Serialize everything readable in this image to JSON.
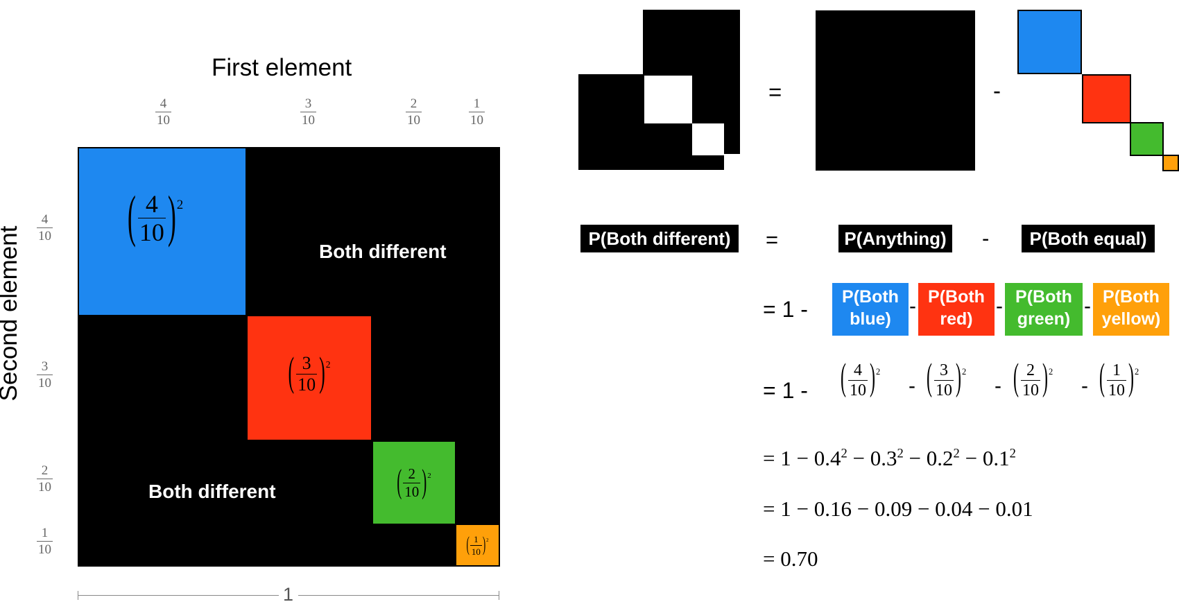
{
  "axes": {
    "top_label": "First element",
    "left_label": "Second element",
    "bottom_label": "1",
    "top_ticks": [
      {
        "num": "4",
        "den": "10"
      },
      {
        "num": "3",
        "den": "10"
      },
      {
        "num": "2",
        "den": "10"
      },
      {
        "num": "1",
        "den": "10"
      }
    ],
    "left_ticks": [
      {
        "num": "4",
        "den": "10"
      },
      {
        "num": "3",
        "den": "10"
      },
      {
        "num": "2",
        "den": "10"
      },
      {
        "num": "1",
        "den": "10"
      }
    ]
  },
  "grid": {
    "diagonal": [
      {
        "num": "4",
        "den": "10",
        "exp": "2",
        "color": "#1E88F0"
      },
      {
        "num": "3",
        "den": "10",
        "exp": "2",
        "color": "#FF3311"
      },
      {
        "num": "2",
        "den": "10",
        "exp": "2",
        "color": "#44BB2E"
      },
      {
        "num": "1",
        "den": "10",
        "exp": "2",
        "color": "#FFA00A"
      }
    ],
    "upper_label": "Both different",
    "lower_label": "Both different",
    "off_diagonal_color": "#000000"
  },
  "visual_equation": {
    "equals": "=",
    "minus": "-"
  },
  "word_equation": {
    "lhs": "P(Both different)",
    "equals": "=",
    "term1": "P(Anything)",
    "minus": "-",
    "term2": "P(Both equal)"
  },
  "expansion": {
    "prefix": "= 1 -",
    "pills": [
      {
        "line1": "P(Both",
        "line2": "blue)",
        "color": "#1E88F0"
      },
      {
        "line1": "P(Both",
        "line2": "red)",
        "color": "#FF3311"
      },
      {
        "line1": "P(Both",
        "line2": "green)",
        "color": "#44BB2E"
      },
      {
        "line1": "P(Both",
        "line2": "yellow)",
        "color": "#FFA00A"
      }
    ],
    "sep": "-"
  },
  "fractions_line": {
    "prefix": "= 1 -",
    "terms": [
      {
        "num": "4",
        "den": "10",
        "exp": "2"
      },
      {
        "num": "3",
        "den": "10",
        "exp": "2"
      },
      {
        "num": "2",
        "den": "10",
        "exp": "2"
      },
      {
        "num": "1",
        "den": "10",
        "exp": "2"
      }
    ],
    "sep": "-"
  },
  "decimal_lines": {
    "line1": {
      "lead": "= 1 − ",
      "terms": [
        "0.4",
        "0.3",
        "0.2",
        "0.1"
      ],
      "exp": "2",
      "op": " − "
    },
    "line2": "= 1 − 0.16 − 0.09 − 0.04 − 0.01",
    "line3": "= 0.70"
  }
}
